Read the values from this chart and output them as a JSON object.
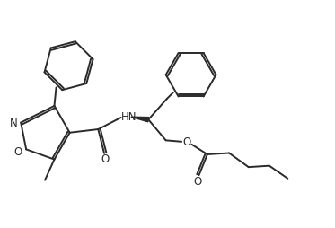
{
  "bg_color": "#ffffff",
  "line_color": "#2a2a2a",
  "line_width": 1.4,
  "figsize": [
    3.73,
    2.55
  ],
  "dpi": 100,
  "xlim": [
    0,
    10
  ],
  "ylim": [
    0,
    6.84
  ]
}
